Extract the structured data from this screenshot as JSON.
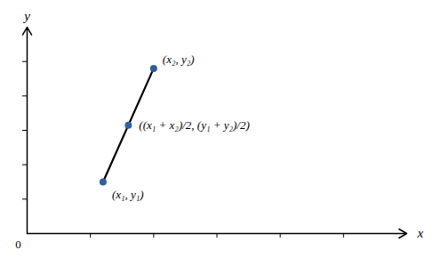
{
  "chart_data": {
    "type": "line",
    "xlabel": "x",
    "ylabel": "y",
    "xlim": [
      0,
      6
    ],
    "ylim": [
      0,
      6
    ],
    "xticks": [
      1,
      2,
      3,
      4,
      5
    ],
    "yticks": [
      1,
      2,
      3,
      4,
      5
    ],
    "tick_labels": false,
    "grid": false,
    "series": [
      {
        "type": "line",
        "color": "#000000",
        "x": [
          1.2,
          2.0
        ],
        "values": [
          1.5,
          4.8
        ]
      },
      {
        "type": "scatter",
        "color": "#2e5fa3",
        "marker": "circle",
        "x": [
          1.2,
          2.0,
          1.6
        ],
        "values": [
          1.5,
          4.8,
          3.15
        ]
      }
    ],
    "annotations": [
      {
        "text": "(x₂, y₂)",
        "x": 2.0,
        "y": 4.8
      },
      {
        "text": "(x₁, y₁)",
        "x": 1.2,
        "y": 1.5
      },
      {
        "text": "((x₁ + x₂)/2, (y₁ + y₂)/2)",
        "x": 1.6,
        "y": 3.15
      },
      {
        "text": "0",
        "x": 0,
        "y": 0
      }
    ]
  }
}
